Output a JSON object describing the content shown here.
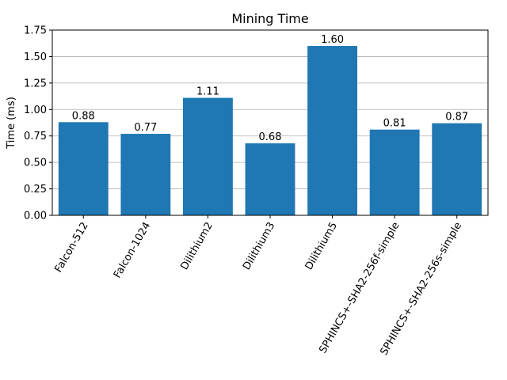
{
  "colors": {
    "bar": "#1f77b4",
    "grid": "#b0b0b0",
    "axis": "#000000",
    "background": "#ffffff"
  },
  "chart_data": {
    "type": "bar",
    "title": "Mining Time",
    "xlabel": "",
    "ylabel": "Time (ms)",
    "categories": [
      "Falcon-512",
      "Falcon-1024",
      "Dilithium2",
      "Dilithium3",
      "Dilithium5",
      "SPHINCS+-SHA2-256f-simple",
      "SPHINCS+-SHA2-256s-simple"
    ],
    "values": [
      0.88,
      0.77,
      1.11,
      0.68,
      1.6,
      0.81,
      0.87
    ],
    "data_labels": [
      "0.88",
      "0.77",
      "1.11",
      "0.68",
      "1.60",
      "0.81",
      "0.87"
    ],
    "ylim": [
      0,
      1.75
    ],
    "yticks": [
      0.0,
      0.25,
      0.5,
      0.75,
      1.0,
      1.25,
      1.5,
      1.75
    ],
    "ytick_labels": [
      "0.00",
      "0.25",
      "0.50",
      "0.75",
      "1.00",
      "1.25",
      "1.50",
      "1.75"
    ],
    "grid": "y",
    "xtick_rotation_deg": 60
  }
}
